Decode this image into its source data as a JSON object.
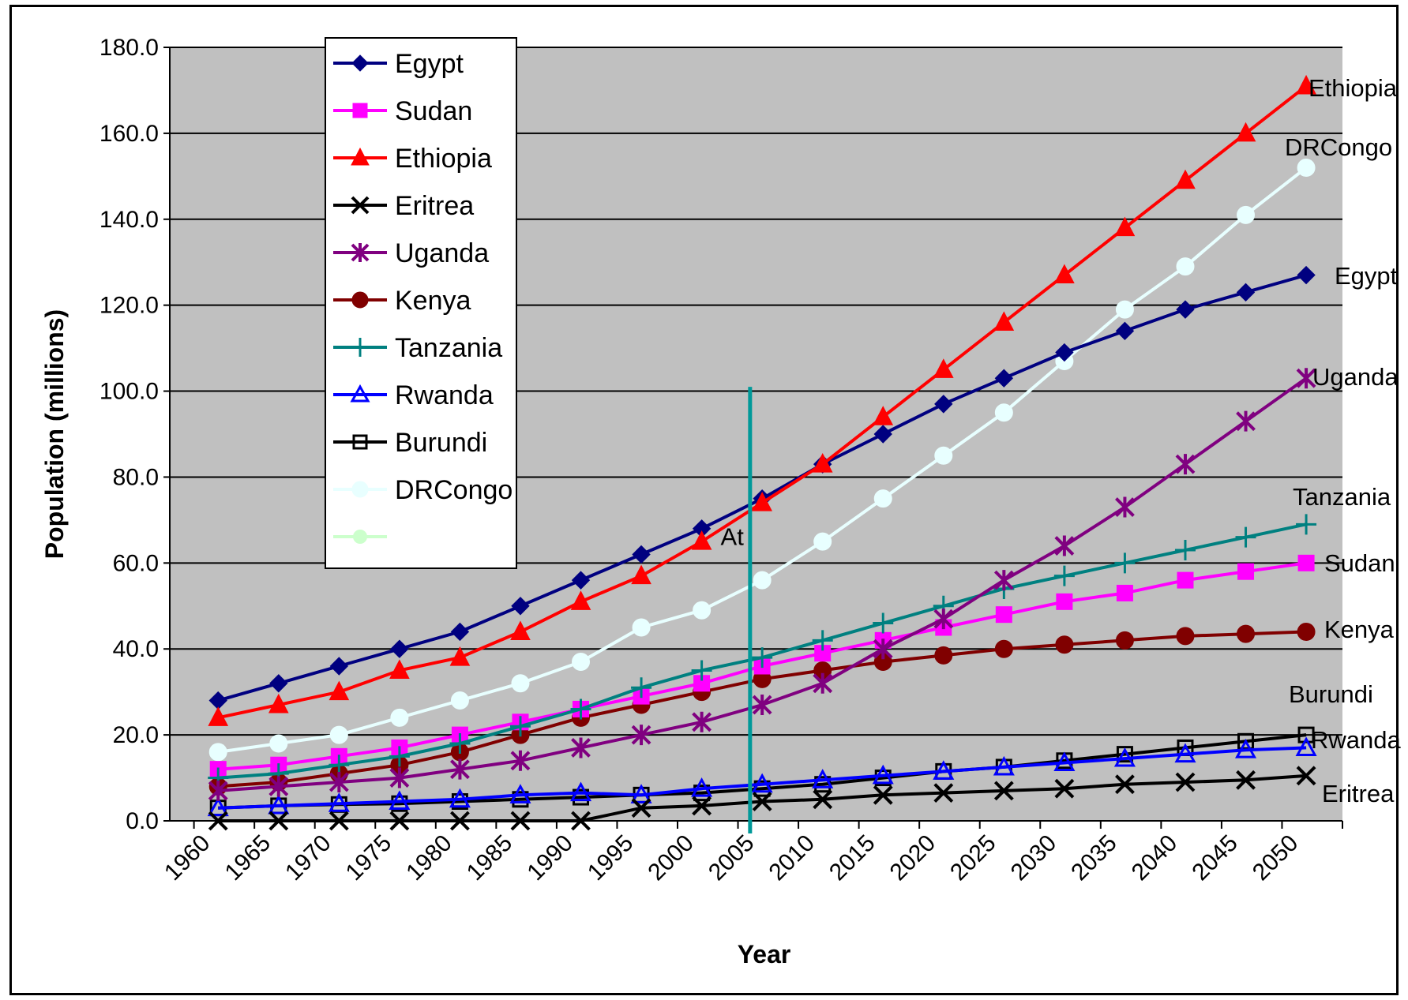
{
  "chart_data": {
    "type": "line",
    "title": "",
    "xlabel": "Year",
    "ylabel": "Population (millions)",
    "ylim": [
      0,
      180
    ],
    "y_ticks": [
      "0.0",
      "20.0",
      "40.0",
      "60.0",
      "80.0",
      "100.0",
      "120.0",
      "140.0",
      "160.0",
      "180.0"
    ],
    "x_tick_labels": [
      "1960",
      "1965",
      "1970",
      "1975",
      "1980",
      "1985",
      "1990",
      "1995",
      "2000",
      "2005",
      "2010",
      "2015",
      "2020",
      "2025",
      "2030",
      "2035",
      "2040",
      "2045",
      "2050"
    ],
    "x": [
      1962,
      1967,
      1972,
      1977,
      1982,
      1987,
      1992,
      1997,
      2002,
      2007,
      2012,
      2017,
      2022,
      2027,
      2032,
      2037,
      2042,
      2047,
      2052
    ],
    "vertical_marker": {
      "x": 2006,
      "ymax": 101,
      "color": "#009999",
      "note": "At"
    },
    "grid": true,
    "plot_background": "#c0c0c0",
    "legend_position": "top-left",
    "series": [
      {
        "name": "Egypt",
        "color": "#000080",
        "marker": "diamond",
        "values": [
          28,
          32,
          36,
          40,
          44,
          50,
          56,
          62,
          68,
          75,
          83,
          90,
          97,
          103,
          109,
          114,
          119,
          123,
          127
        ],
        "end_label": "Egypt"
      },
      {
        "name": "Sudan",
        "color": "#ff00ff",
        "marker": "square",
        "values": [
          12,
          13,
          15,
          17,
          20,
          23,
          26,
          29,
          32,
          36,
          39,
          42,
          45,
          48,
          51,
          53,
          56,
          58,
          60
        ],
        "end_label": "Sudan"
      },
      {
        "name": "Ethiopia",
        "color": "#ff0000",
        "marker": "triangle",
        "values": [
          24,
          27,
          30,
          35,
          38,
          44,
          51,
          57,
          65,
          74,
          83,
          94,
          105,
          116,
          127,
          138,
          149,
          160,
          171
        ],
        "end_label": "Ethiopia"
      },
      {
        "name": "Eritrea",
        "color": "#000000",
        "marker": "x",
        "values": [
          0,
          0,
          0,
          0,
          0,
          0,
          0,
          3,
          3.5,
          4.5,
          5,
          6,
          6.5,
          7,
          7.5,
          8.5,
          9,
          9.5,
          10.5
        ],
        "end_label": "Eritrea"
      },
      {
        "name": "Uganda",
        "color": "#800080",
        "marker": "star",
        "values": [
          7,
          8,
          9,
          10,
          12,
          14,
          17,
          20,
          23,
          27,
          32,
          40,
          47,
          56,
          64,
          73,
          83,
          93,
          103
        ],
        "end_label": "Uganda"
      },
      {
        "name": "Kenya",
        "color": "#800000",
        "marker": "circle",
        "values": [
          8,
          9,
          11,
          13,
          16,
          20,
          24,
          27,
          30,
          33,
          35,
          37,
          38.5,
          40,
          41,
          42,
          43,
          43.5,
          44
        ],
        "end_label": "Kenya"
      },
      {
        "name": "Tanzania",
        "color": "#008080",
        "marker": "plus",
        "values": [
          10,
          11,
          13,
          15,
          18,
          22,
          26,
          31,
          35,
          38,
          42,
          46,
          50,
          54,
          57,
          60,
          63,
          66,
          69
        ],
        "end_label": "Tanzania"
      },
      {
        "name": "Rwanda",
        "color": "#0000ff",
        "marker": "open-triangle",
        "values": [
          3,
          3.5,
          4,
          4.5,
          5,
          6,
          6.5,
          6,
          7.5,
          8.5,
          9.5,
          10.5,
          11.5,
          12.5,
          13.5,
          14.5,
          15.5,
          16.5,
          17
        ],
        "end_label": "Rwanda"
      },
      {
        "name": "Burundi",
        "color": "#000000",
        "marker": "open-square",
        "values": [
          3,
          3.5,
          3.8,
          4,
          4.5,
          5,
          5.5,
          6,
          6.5,
          7.5,
          8.5,
          10,
          11.5,
          12.5,
          14,
          15.5,
          17,
          18.5,
          20
        ],
        "end_label": "Burundi"
      },
      {
        "name": "DRCongo",
        "color": "#e8ffff",
        "marker": "circle",
        "values": [
          16,
          18,
          20,
          24,
          28,
          32,
          37,
          45,
          49,
          56,
          65,
          75,
          85,
          95,
          107,
          119,
          129,
          141,
          152
        ],
        "end_label": "DRCongo"
      }
    ]
  }
}
